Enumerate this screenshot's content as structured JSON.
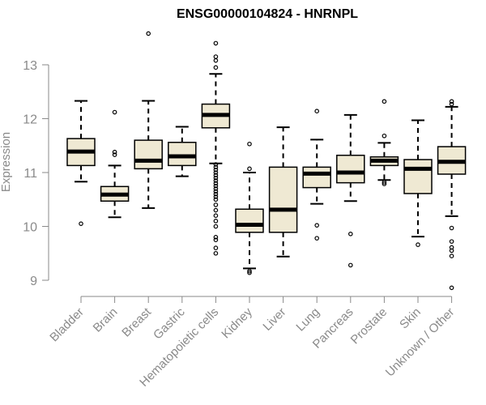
{
  "chart_data": {
    "type": "boxplot",
    "title": "ENSG00000104824 - HNRNPL",
    "xlabel": "",
    "ylabel": "Expression",
    "ylim": [
      8.8,
      13.8
    ],
    "yticks": [
      9,
      10,
      11,
      12,
      13
    ],
    "box_fill": "#efe9d3",
    "line_color": "#000000",
    "axis_color": "#8a8a8a",
    "grid": false,
    "categories": [
      "Bladder",
      "Brain",
      "Breast",
      "Gastric",
      "Hematopoietic cells",
      "Kidney",
      "Liver",
      "Lung",
      "Pancreas",
      "Prostate",
      "Skin",
      "Unknown / Other"
    ],
    "boxes": [
      {
        "category": "Bladder",
        "whisker_low": 10.83,
        "q1": 11.13,
        "median": 11.39,
        "q3": 11.63,
        "whisker_high": 12.33,
        "outliers": [
          10.05
        ]
      },
      {
        "category": "Brain",
        "whisker_low": 10.17,
        "q1": 10.47,
        "median": 10.59,
        "q3": 10.74,
        "whisker_high": 11.13,
        "outliers": [
          11.33,
          11.38,
          12.12
        ]
      },
      {
        "category": "Breast",
        "whisker_low": 10.34,
        "q1": 11.07,
        "median": 11.22,
        "q3": 11.6,
        "whisker_high": 12.33,
        "outliers": [
          13.58
        ]
      },
      {
        "category": "Gastric",
        "whisker_low": 10.93,
        "q1": 11.13,
        "median": 11.3,
        "q3": 11.56,
        "whisker_high": 11.85,
        "outliers": []
      },
      {
        "category": "Hematopoietic cells",
        "whisker_low": 11.17,
        "q1": 11.83,
        "median": 12.07,
        "q3": 12.27,
        "whisker_high": 12.83,
        "outliers": [
          13.4,
          13.15,
          13.08,
          12.95,
          11.15,
          11.1,
          11.05,
          11.0,
          10.95,
          10.9,
          10.85,
          10.8,
          10.75,
          10.7,
          10.65,
          10.6,
          10.55,
          10.5,
          10.4,
          10.3,
          10.2,
          10.1,
          10.0,
          9.8,
          9.75,
          9.6,
          9.5
        ]
      },
      {
        "category": "Kidney",
        "whisker_low": 9.22,
        "q1": 9.89,
        "median": 10.03,
        "q3": 10.32,
        "whisker_high": 11.0,
        "outliers": [
          11.53,
          11.07,
          9.17,
          9.14
        ]
      },
      {
        "category": "Liver",
        "whisker_low": 9.44,
        "q1": 9.89,
        "median": 10.31,
        "q3": 11.1,
        "whisker_high": 11.84,
        "outliers": []
      },
      {
        "category": "Lung",
        "whisker_low": 10.42,
        "q1": 10.72,
        "median": 10.98,
        "q3": 11.1,
        "whisker_high": 11.61,
        "outliers": [
          12.14,
          10.02,
          9.78
        ]
      },
      {
        "category": "Pancreas",
        "whisker_low": 10.47,
        "q1": 10.81,
        "median": 11.0,
        "q3": 11.32,
        "whisker_high": 12.07,
        "outliers": [
          9.86,
          9.28
        ]
      },
      {
        "category": "Prostate",
        "whisker_low": 10.86,
        "q1": 11.13,
        "median": 11.22,
        "q3": 11.29,
        "whisker_high": 11.55,
        "outliers": [
          12.32,
          11.68,
          10.82,
          10.79
        ]
      },
      {
        "category": "Skin",
        "whisker_low": 9.81,
        "q1": 10.61,
        "median": 11.07,
        "q3": 11.24,
        "whisker_high": 11.97,
        "outliers": [
          9.66
        ]
      },
      {
        "category": "Unknown / Other",
        "whisker_low": 10.19,
        "q1": 10.97,
        "median": 11.2,
        "q3": 11.48,
        "whisker_high": 12.22,
        "outliers": [
          12.32,
          12.27,
          9.97,
          9.72,
          9.61,
          9.55,
          9.45,
          8.86
        ]
      }
    ]
  }
}
